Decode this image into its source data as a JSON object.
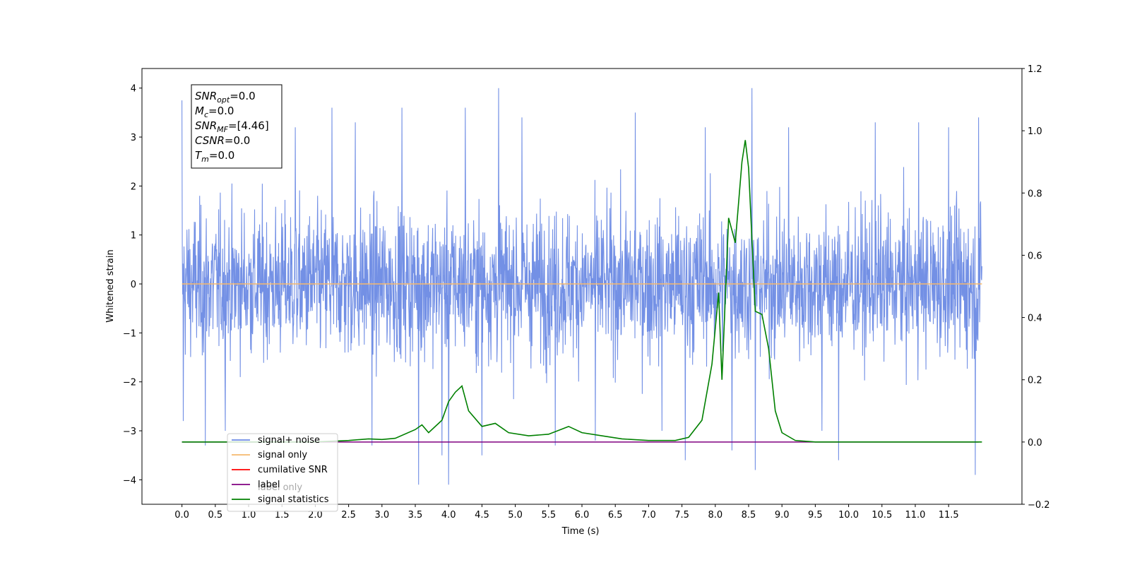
{
  "chart_data": {
    "type": "line",
    "title": "",
    "xlabel": "Time (s)",
    "ylabel": "Whitened strain",
    "xlim": [
      -0.6,
      12.6
    ],
    "ylim": [
      -4.5,
      4.4
    ],
    "y2lim": [
      -0.2,
      1.2
    ],
    "grid": false,
    "legend_position": "lower-left",
    "x_ticks": [
      "0.0",
      "0.5",
      "1.0",
      "1.5",
      "2.0",
      "2.5",
      "3.0",
      "3.5",
      "4.0",
      "4.5",
      "5.0",
      "5.5",
      "6.0",
      "6.5",
      "7.0",
      "7.5",
      "8.0",
      "8.5",
      "9.0",
      "9.5",
      "10.0",
      "10.5",
      "11.0",
      "11.5"
    ],
    "y_ticks": [
      "−4",
      "−3",
      "−2",
      "−1",
      "0",
      "1",
      "2",
      "3",
      "4"
    ],
    "y2_ticks": [
      "−0.2",
      "0.0",
      "0.2",
      "0.4",
      "0.6",
      "0.8",
      "1.0",
      "1.2"
    ],
    "annotation": [
      {
        "base": "SNR",
        "sub": "opt",
        "rest": "=0.0"
      },
      {
        "base": "M",
        "sub": "c",
        "rest": "=0.0"
      },
      {
        "base": "SNR",
        "sub": "MF",
        "rest": "=[4.46]"
      },
      {
        "base": "CSNR",
        "sub": "",
        "rest": "=0.0"
      },
      {
        "base": "T",
        "sub": "m",
        "rest": "=0.0"
      }
    ],
    "series": [
      {
        "name": "signal+ noise",
        "color": "#6c8ae4",
        "axis": "left",
        "description": "whitened noise, approx zero-mean with extremes near ±4",
        "t_range": [
          0.0,
          12.0
        ],
        "envelope": {
          "typical_max": 2.6,
          "typical_min": -2.4
        },
        "spikes": [
          [
            0.0,
            3.75
          ],
          [
            0.02,
            -2.8
          ],
          [
            0.35,
            -3.3
          ],
          [
            0.65,
            -3.0
          ],
          [
            1.7,
            3.2
          ],
          [
            2.25,
            3.6
          ],
          [
            2.6,
            3.3
          ],
          [
            2.85,
            -3.3
          ],
          [
            3.3,
            3.6
          ],
          [
            3.55,
            -4.1
          ],
          [
            3.9,
            -3.5
          ],
          [
            4.0,
            -4.1
          ],
          [
            4.25,
            3.6
          ],
          [
            4.5,
            -3.5
          ],
          [
            4.75,
            4.0
          ],
          [
            5.1,
            3.4
          ],
          [
            5.6,
            -3.3
          ],
          [
            6.2,
            -3.2
          ],
          [
            6.8,
            3.5
          ],
          [
            7.2,
            -3.0
          ],
          [
            7.55,
            -3.6
          ],
          [
            7.85,
            3.2
          ],
          [
            8.25,
            -3.4
          ],
          [
            8.55,
            4.0
          ],
          [
            8.6,
            -3.8
          ],
          [
            9.1,
            3.2
          ],
          [
            9.6,
            -3.0
          ],
          [
            9.85,
            -3.6
          ],
          [
            10.4,
            3.3
          ],
          [
            11.05,
            3.3
          ],
          [
            11.5,
            3.2
          ],
          [
            11.9,
            -3.9
          ],
          [
            11.95,
            3.4
          ]
        ]
      },
      {
        "name": "signal only",
        "color": "#f5b86e",
        "axis": "left",
        "x": [
          0.0,
          12.0
        ],
        "y": [
          0.0,
          0.0
        ]
      },
      {
        "name": "cumilative SNR",
        "color": "#ff0000",
        "axis": "left",
        "x": [],
        "y": []
      },
      {
        "name": "label",
        "color": "#800080",
        "axis": "right",
        "x": [
          0.0,
          11.95
        ],
        "y": [
          0.0,
          0.0
        ]
      },
      {
        "name": "signal statistics",
        "color": "#008000",
        "axis": "right",
        "x": [
          0.0,
          2.0,
          2.5,
          2.8,
          3.0,
          3.2,
          3.5,
          3.6,
          3.7,
          3.9,
          4.0,
          4.1,
          4.2,
          4.3,
          4.5,
          4.7,
          4.9,
          5.2,
          5.5,
          5.8,
          6.0,
          6.3,
          6.6,
          7.0,
          7.4,
          7.6,
          7.8,
          7.95,
          8.05,
          8.1,
          8.2,
          8.3,
          8.4,
          8.45,
          8.5,
          8.6,
          8.7,
          8.8,
          8.9,
          9.0,
          9.2,
          9.5,
          12.0
        ],
        "y": [
          0.0,
          0.0,
          0.005,
          0.01,
          0.008,
          0.012,
          0.04,
          0.055,
          0.03,
          0.07,
          0.13,
          0.16,
          0.18,
          0.1,
          0.05,
          0.06,
          0.03,
          0.02,
          0.025,
          0.05,
          0.03,
          0.02,
          0.01,
          0.005,
          0.005,
          0.015,
          0.07,
          0.25,
          0.48,
          0.2,
          0.72,
          0.64,
          0.9,
          0.97,
          0.88,
          0.42,
          0.41,
          0.3,
          0.1,
          0.03,
          0.005,
          0.0,
          0.0
        ]
      }
    ],
    "legend_items": [
      {
        "name": "signal+ noise",
        "color": "#6c8ae4"
      },
      {
        "name": "signal only",
        "color": "#f5b86e"
      },
      {
        "name": "cumilative SNR",
        "color": "#ff0000"
      },
      {
        "name": "label",
        "color": "#800080"
      },
      {
        "name": "signal statistics",
        "color": "#008000"
      }
    ],
    "hidden_legend_text": "label only"
  }
}
